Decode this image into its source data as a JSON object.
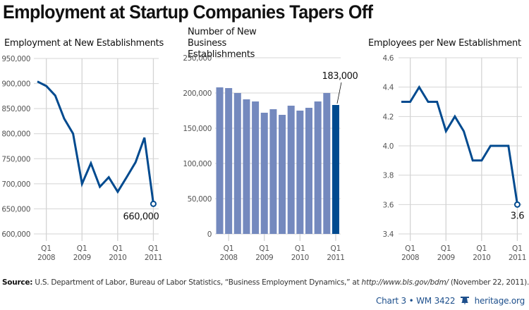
{
  "title": "Employment at Startup Companies Tapers Off",
  "colors": {
    "line": "#004A8F",
    "bar": "#7489BE",
    "bar_highlight": "#004A8F",
    "grid": "#d4d4d4",
    "tick_text": "#555555"
  },
  "chart_data": [
    {
      "type": "line",
      "title": "Employment at New Establishments",
      "xlabel": "",
      "ylabel": "",
      "x": [
        "Q4 2007",
        "Q1 2008",
        "Q2 2008",
        "Q3 2008",
        "Q4 2008",
        "Q1 2009",
        "Q2 2009",
        "Q3 2009",
        "Q4 2009",
        "Q1 2010",
        "Q2 2010",
        "Q3 2010",
        "Q4 2010",
        "Q1 2011"
      ],
      "values": [
        904000,
        895000,
        876000,
        830000,
        800000,
        700000,
        741000,
        694000,
        713000,
        684000,
        713000,
        743000,
        792000,
        660000
      ],
      "ylim": [
        600000,
        950000
      ],
      "yticks": [
        600000,
        650000,
        700000,
        750000,
        800000,
        850000,
        900000,
        950000
      ],
      "ytick_labels": [
        "600,000",
        "650,000",
        "700,000",
        "750,000",
        "800,000",
        "850,000",
        "900,000",
        "950,000"
      ],
      "xtick_labels": [
        [
          "Q1",
          "2008"
        ],
        [
          "Q1",
          "2009"
        ],
        [
          "Q1",
          "2010"
        ],
        [
          "Q1",
          "2011"
        ]
      ],
      "xtick_index": [
        1,
        5,
        9,
        13
      ],
      "annotation": "660,000",
      "grid": true
    },
    {
      "type": "bar",
      "title": "Number of New Business Establishments",
      "xlabel": "",
      "ylabel": "",
      "x": [
        "Q4 2007",
        "Q1 2008",
        "Q2 2008",
        "Q3 2008",
        "Q4 2008",
        "Q1 2009",
        "Q2 2009",
        "Q3 2009",
        "Q4 2009",
        "Q1 2010",
        "Q2 2010",
        "Q3 2010",
        "Q4 2010",
        "Q1 2011"
      ],
      "values": [
        208000,
        207000,
        200000,
        191000,
        188000,
        172000,
        177000,
        169000,
        182000,
        175000,
        179000,
        188000,
        200000,
        183000
      ],
      "highlight_index": 13,
      "ylim": [
        0,
        250000
      ],
      "yticks": [
        0,
        50000,
        100000,
        150000,
        200000,
        250000
      ],
      "ytick_labels": [
        "0",
        "50,000",
        "100,000",
        "150,000",
        "200,000",
        "250,000"
      ],
      "xtick_labels": [
        [
          "Q1",
          "2008"
        ],
        [
          "Q1",
          "2009"
        ],
        [
          "Q1",
          "2010"
        ],
        [
          "Q1",
          "2011"
        ]
      ],
      "xtick_index": [
        1,
        5,
        9,
        13
      ],
      "annotation": "183,000",
      "grid": true
    },
    {
      "type": "line",
      "title": "Employees per New Establishment",
      "xlabel": "",
      "ylabel": "",
      "x": [
        "Q4 2007",
        "Q1 2008",
        "Q2 2008",
        "Q3 2008",
        "Q4 2008",
        "Q1 2009",
        "Q2 2009",
        "Q3 2009",
        "Q4 2009",
        "Q1 2010",
        "Q2 2010",
        "Q3 2010",
        "Q4 2010",
        "Q1 2011"
      ],
      "values": [
        4.3,
        4.3,
        4.4,
        4.3,
        4.3,
        4.1,
        4.2,
        4.1,
        3.9,
        3.9,
        4.0,
        4.0,
        4.0,
        3.6
      ],
      "ylim": [
        3.4,
        4.6
      ],
      "yticks": [
        3.4,
        3.6,
        3.8,
        4.0,
        4.2,
        4.4,
        4.6
      ],
      "ytick_labels": [
        "3.4",
        "3.6",
        "3.8",
        "4.0",
        "4.2",
        "4.4",
        "4.6"
      ],
      "xtick_labels": [
        [
          "Q1",
          "2008"
        ],
        [
          "Q1",
          "2009"
        ],
        [
          "Q1",
          "2010"
        ],
        [
          "Q1",
          "2011"
        ]
      ],
      "xtick_index": [
        1,
        5,
        9,
        13
      ],
      "annotation": "3.6",
      "grid": true
    }
  ],
  "source": {
    "label": "Source:",
    "text_before": " U.S. Department of Labor, Bureau of Labor Statistics, “Business Employment Dynamics,” at ",
    "url": "http://www.bls.gov/bdm/",
    "text_after": " (November 22, 2011)."
  },
  "footer": {
    "chart_label": "Chart 3",
    "separator": "•",
    "report": "WM 3422",
    "logo_icon": "liberty-bell-icon",
    "site": "heritage.org"
  }
}
